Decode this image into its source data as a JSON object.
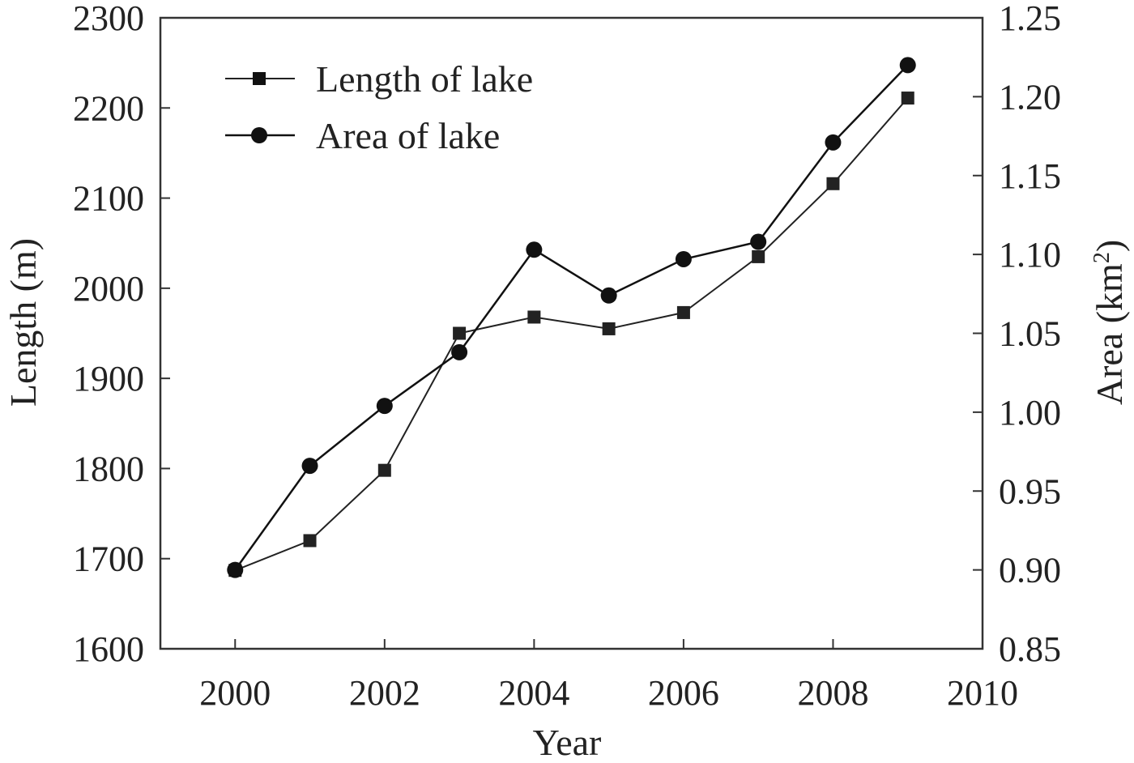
{
  "chart_data": {
    "type": "line",
    "title": "",
    "xlabel": "Year",
    "ylabel_left": "Length (m)",
    "ylabel_right_text": "Area (km",
    "ylabel_right_sup": "2",
    "ylabel_right_close": ")",
    "xlim": [
      1999,
      2010
    ],
    "ylim_left": [
      1600,
      2300
    ],
    "ylim_right": [
      0.85,
      1.25
    ],
    "x_ticks": [
      2000,
      2002,
      2004,
      2006,
      2008,
      2010
    ],
    "x_tick_labels": [
      "2000",
      "2002",
      "2004",
      "2006",
      "2008",
      "2010"
    ],
    "y_left_ticks": [
      1600,
      1700,
      1800,
      1900,
      2000,
      2100,
      2200,
      2300
    ],
    "y_left_tick_labels": [
      "1600",
      "1700",
      "1800",
      "1900",
      "2000",
      "2100",
      "2200",
      "2300"
    ],
    "y_right_ticks": [
      0.85,
      0.9,
      0.95,
      1.0,
      1.05,
      1.1,
      1.15,
      1.2,
      1.25
    ],
    "y_right_tick_labels": [
      "0.85",
      "0.90",
      "0.95",
      "1.00",
      "1.05",
      "1.10",
      "1.15",
      "1.20",
      "1.25"
    ],
    "grid": false,
    "legend_position": "top-left",
    "series": [
      {
        "name": "Length of lake",
        "axis": "left",
        "marker": "square",
        "color": "#222222",
        "x": [
          2000,
          2001,
          2002,
          2003,
          2004,
          2005,
          2006,
          2007,
          2008,
          2009
        ],
        "y": [
          1687,
          1720,
          1798,
          1950,
          1968,
          1955,
          1973,
          2035,
          2116,
          2211
        ]
      },
      {
        "name": "Area of lake",
        "axis": "right",
        "marker": "circle",
        "color": "#111111",
        "x": [
          2000,
          2001,
          2002,
          2003,
          2004,
          2005,
          2006,
          2007,
          2008,
          2009
        ],
        "y": [
          0.9,
          0.966,
          1.004,
          1.038,
          1.103,
          1.074,
          1.097,
          1.108,
          1.171,
          1.22
        ]
      }
    ]
  }
}
